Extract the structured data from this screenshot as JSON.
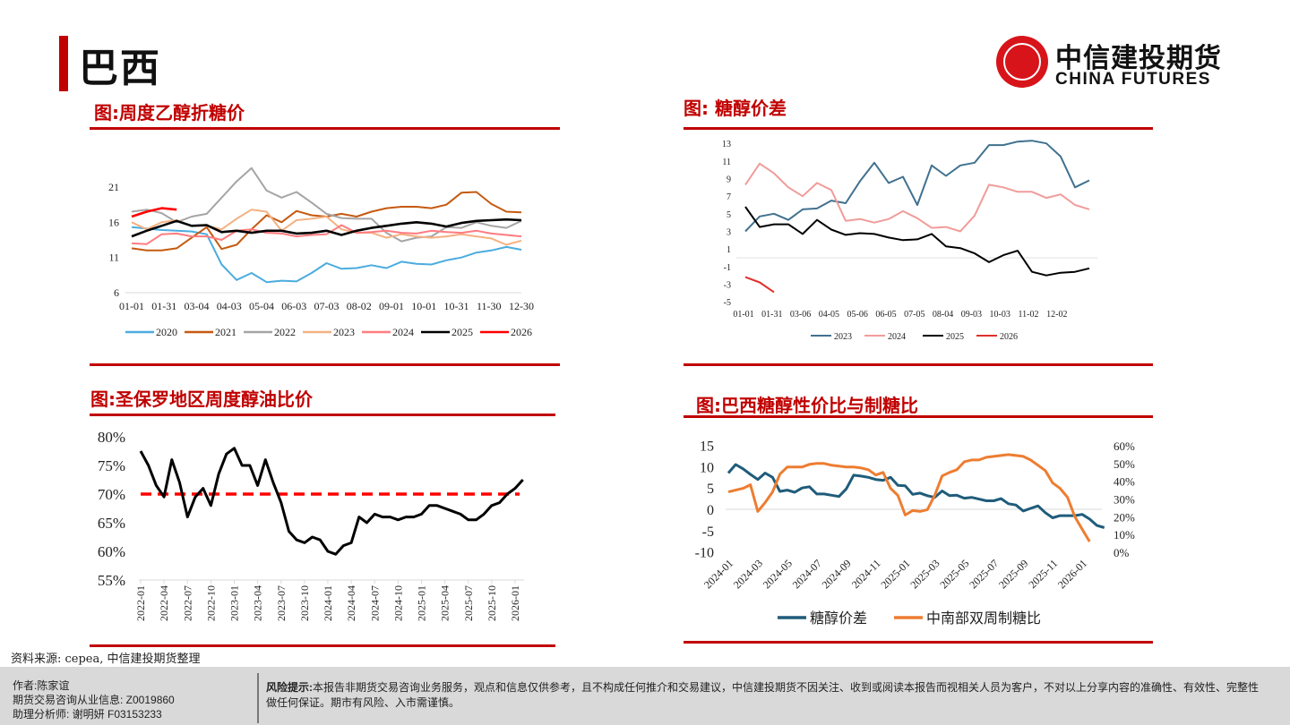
{
  "header": {
    "title": "巴西",
    "logo_cn": "中信建投期货",
    "logo_en": "CHINA FUTURES"
  },
  "sections": {
    "s1": "图:周度乙醇折糖价",
    "s2": "图: 糖醇价差",
    "s3": "图:圣保罗地区周度醇油比价",
    "s4": "图:巴西糖醇性价比与制糖比"
  },
  "source": "资料来源: cepea, 中信建投期货整理",
  "footer": {
    "author": "作者:陈家谊",
    "license": "期货交易咨询从业信息:  Z0019860",
    "assistant": "助理分析师:  谢明妍 F03153233",
    "risk_label": "风险提示:",
    "risk_text": "本报告非期货交易咨询业务服务，观点和信息仅供参考，且不构成任何推介和交易建议，中信建投期货不因关注、收到或阅读本报告而视相关人员为客户，不对以上分享内容的准确性、有效性、完整性做任何保证。期市有风险、入市需谨慎。"
  },
  "chart_data": [
    {
      "id": "c1",
      "type": "line",
      "title": "图:周度乙醇折糖价",
      "x_step_days": 14,
      "x_tick_labels": [
        "01-01",
        "01-31",
        "03-04",
        "04-03",
        "05-04",
        "06-03",
        "07-03",
        "08-02",
        "09-01",
        "10-01",
        "10-31",
        "11-30",
        "12-30"
      ],
      "y_ticks": [
        6,
        11,
        16,
        21
      ],
      "ylim": [
        6,
        26
      ],
      "legend": "bottom",
      "series": [
        {
          "name": "2020",
          "color": "#4bacdf",
          "values": [
            15.3,
            15.1,
            14.9,
            14.8,
            14.7,
            14.3,
            10.0,
            7.8,
            8.8,
            7.5,
            7.7,
            7.6,
            8.8,
            10.2,
            9.4,
            9.5,
            9.9,
            9.5,
            10.4,
            10.1,
            10.0,
            10.6,
            11.0,
            11.7,
            12.0,
            12.5,
            12.1
          ]
        },
        {
          "name": "2021",
          "color": "#c55a11",
          "values": [
            12.3,
            12.0,
            12.0,
            12.3,
            13.8,
            15.3,
            12.2,
            12.8,
            15.0,
            17.0,
            16.0,
            17.6,
            17.0,
            16.8,
            17.2,
            16.8,
            17.5,
            18.0,
            18.2,
            18.2,
            18.0,
            18.5,
            20.2,
            20.3,
            18.6,
            17.5,
            17.4
          ]
        },
        {
          "name": "2022",
          "color": "#a5a5a5",
          "values": [
            17.5,
            17.8,
            17.3,
            16.0,
            16.8,
            17.2,
            19.5,
            21.8,
            23.7,
            20.5,
            19.5,
            20.3,
            18.8,
            17.2,
            16.6,
            16.5,
            16.5,
            14.5,
            13.3,
            13.8,
            14.0,
            15.3,
            15.2,
            16.0,
            15.5,
            15.2,
            16.2
          ]
        },
        {
          "name": "2023",
          "color": "#f4b183",
          "values": [
            16.0,
            15.0,
            16.0,
            16.3,
            15.5,
            15.5,
            15.0,
            16.5,
            17.8,
            17.5,
            14.8,
            16.3,
            16.5,
            16.8,
            15.0,
            14.5,
            14.5,
            13.8,
            14.3,
            14.0,
            13.8,
            14.0,
            14.3,
            14.0,
            13.7,
            12.8,
            13.4
          ]
        },
        {
          "name": "2024",
          "color": "#ff7c80",
          "values": [
            13.0,
            12.9,
            14.3,
            14.4,
            14.0,
            14.0,
            13.5,
            14.8,
            15.0,
            14.5,
            14.4,
            14.0,
            14.2,
            14.3,
            15.6,
            14.5,
            14.6,
            14.8,
            14.5,
            14.4,
            14.8,
            14.6,
            14.5,
            14.8,
            14.4,
            14.2,
            14.0
          ]
        },
        {
          "name": "2025",
          "color": "#000000",
          "values": [
            14.0,
            14.8,
            15.5,
            16.2,
            15.5,
            15.6,
            14.6,
            14.8,
            14.5,
            14.8,
            14.8,
            14.4,
            14.5,
            14.8,
            14.2,
            14.8,
            15.2,
            15.5,
            15.8,
            16.0,
            15.8,
            15.4,
            15.9,
            16.2,
            16.3,
            16.4,
            16.3
          ]
        },
        {
          "name": "2026",
          "color": "#ff0000",
          "values": [
            16.8,
            17.5,
            18.0,
            17.8
          ]
        }
      ]
    },
    {
      "id": "c2",
      "type": "line",
      "title": "图: 糖醇价差",
      "x_step_days": 14,
      "x_tick_labels": [
        "01-01",
        "01-31",
        "03-06",
        "04-05",
        "05-06",
        "06-05",
        "07-05",
        "08-04",
        "09-03",
        "10-03",
        "11-02",
        "12-02"
      ],
      "y_ticks": [
        -5,
        -3,
        -1,
        1,
        3,
        5,
        7,
        9,
        11,
        13
      ],
      "ylim": [
        -5,
        13
      ],
      "legend": "bottom",
      "series": [
        {
          "name": "2023",
          "color": "#41718f",
          "values": [
            3.0,
            4.7,
            5.0,
            4.3,
            5.5,
            5.6,
            6.5,
            6.2,
            8.7,
            10.8,
            8.5,
            9.2,
            6.0,
            10.5,
            9.3,
            10.5,
            10.8,
            12.8,
            12.8,
            13.2,
            13.3,
            13.0,
            11.5,
            8.0,
            8.8
          ]
        },
        {
          "name": "2024",
          "color": "#f09c9a",
          "values": [
            8.3,
            10.7,
            9.6,
            8.0,
            7.0,
            8.5,
            7.7,
            4.2,
            4.4,
            4.0,
            4.4,
            5.3,
            4.5,
            3.4,
            3.5,
            3.0,
            4.8,
            8.3,
            8.0,
            7.5,
            7.5,
            6.8,
            7.2,
            6.0,
            5.5
          ]
        },
        {
          "name": "2025",
          "color": "#000000",
          "values": [
            5.8,
            3.5,
            3.8,
            3.8,
            2.7,
            4.3,
            3.2,
            2.6,
            2.8,
            2.7,
            2.3,
            2.0,
            2.1,
            2.7,
            1.3,
            1.1,
            0.5,
            -0.5,
            0.3,
            0.8,
            -1.6,
            -2.0,
            -1.7,
            -1.6,
            -1.2
          ]
        },
        {
          "name": "2026",
          "color": "#e0302a",
          "values": [
            -2.2,
            -2.8,
            -3.9
          ]
        }
      ]
    },
    {
      "id": "c3",
      "type": "line",
      "title": "图:圣保罗地区周度醇油比价",
      "x_start": "2022-01",
      "x_step": "month",
      "x_tick_labels": [
        "2022-01",
        "2022-04",
        "2022-07",
        "2022-10",
        "2023-01",
        "2023-04",
        "2023-07",
        "2023-10",
        "2024-01",
        "2024-04",
        "2024-07",
        "2024-10",
        "2025-01",
        "2025-04",
        "2025-07",
        "2025-10",
        "2026-01"
      ],
      "y_tick_labels": [
        "55%",
        "60%",
        "65%",
        "70%",
        "75%",
        "80%"
      ],
      "ylim": [
        55,
        80
      ],
      "threshold": 70,
      "threshold_color": "#ff0000",
      "series": [
        {
          "name": "醇油比价",
          "color": "#000000",
          "values": [
            77.5,
            75,
            71.5,
            69.5,
            76,
            72,
            66,
            69.5,
            71,
            68,
            73.5,
            77,
            78,
            75,
            75,
            71.5,
            76,
            72,
            68.5,
            63.5,
            62,
            61.5,
            62.5,
            62,
            60,
            59.5,
            61,
            61.5,
            66,
            65,
            66.5,
            66,
            66,
            65.5,
            66,
            66,
            66.5,
            68,
            68,
            67.5,
            67,
            66.5,
            65.5,
            65.5,
            66.5,
            68,
            68.5,
            70,
            71,
            72.5
          ]
        }
      ]
    },
    {
      "id": "c4",
      "type": "line",
      "title": "图:巴西糖醇性价比与制糖比",
      "x_start": "2024-01",
      "x_step": "half-month",
      "x_tick_labels": [
        "2024-01",
        "2024-03",
        "2024-05",
        "2024-07",
        "2024-09",
        "2024-11",
        "2025-01",
        "2025-03",
        "2025-05",
        "2025-07",
        "2025-09",
        "2025-11",
        "2026-01"
      ],
      "y_left_ticks": [
        -10,
        -5,
        0,
        5,
        10,
        15
      ],
      "ylim_left": [
        -10,
        15
      ],
      "y_right_tick_labels": [
        "0%",
        "10%",
        "20%",
        "30%",
        "40%",
        "50%",
        "60%"
      ],
      "ylim_right": [
        0,
        60
      ],
      "legend": "bottom",
      "series": [
        {
          "name": "糖醇价差",
          "axis": "left",
          "color": "#1f5c7a",
          "values": [
            8.5,
            10.5,
            9.5,
            8.2,
            7.0,
            8.5,
            7.5,
            4.2,
            4.5,
            4.0,
            5.0,
            5.3,
            3.6,
            3.6,
            3.3,
            3.0,
            4.8,
            8.0,
            7.8,
            7.5,
            7.0,
            6.8,
            7.5,
            5.6,
            5.5,
            3.5,
            3.8,
            3.2,
            2.8,
            4.3,
            3.2,
            3.3,
            2.6,
            2.8,
            2.4,
            2.0,
            2.0,
            2.5,
            1.3,
            1.0,
            -0.4,
            0.2,
            0.8,
            -0.8,
            -2.0,
            -1.5,
            -1.5,
            -1.5,
            -1.2,
            -2.3,
            -3.8,
            -4.3
          ]
        },
        {
          "name": "中南部双周制糖比",
          "axis": "right",
          "color": "#ed7d31",
          "values": [
            34,
            35,
            36,
            38,
            23,
            28,
            34,
            44,
            48,
            48,
            48,
            49.5,
            50,
            50,
            49,
            48.5,
            48,
            48,
            47.5,
            46.5,
            43.5,
            45,
            36,
            32,
            21,
            23.5,
            23,
            24,
            32,
            43,
            45,
            46.5,
            51,
            52,
            52,
            53.5,
            54,
            54.5,
            55,
            54.5,
            54,
            52,
            49,
            46,
            39,
            36,
            31,
            20,
            13,
            6
          ]
        }
      ]
    }
  ]
}
